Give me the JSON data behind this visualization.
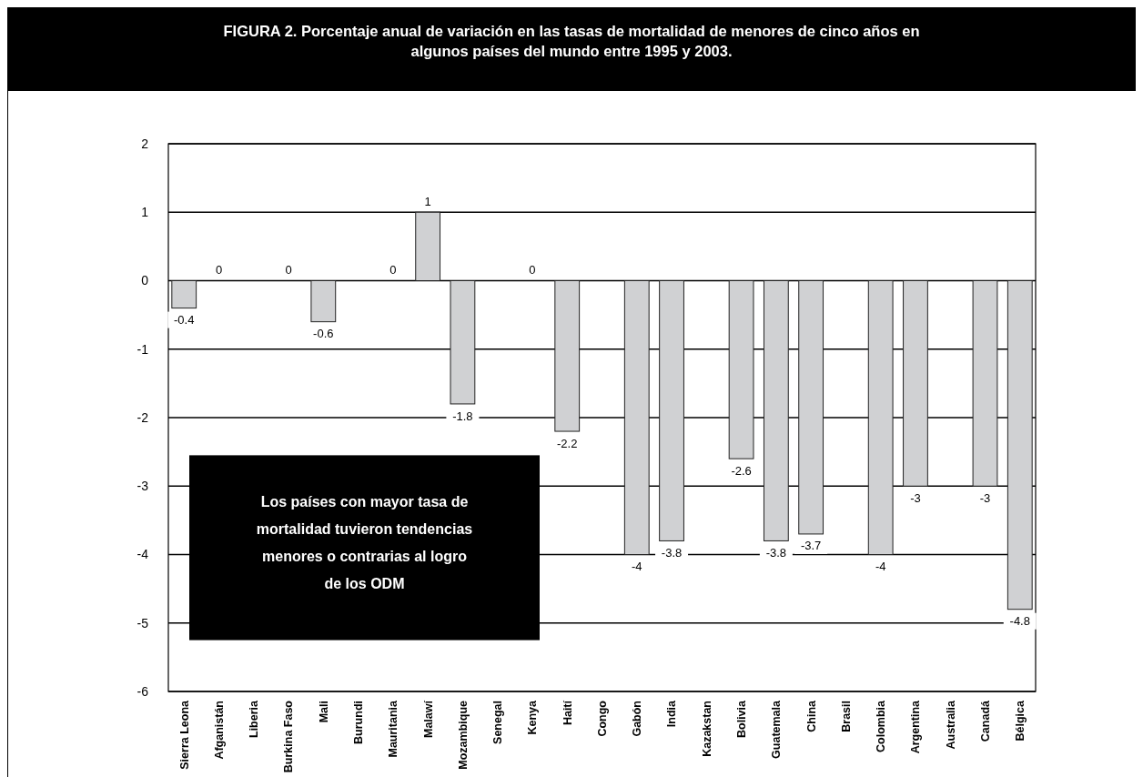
{
  "chart_data": {
    "type": "bar",
    "title": "FIGURA 2. Porcentaje anual de variación en las tasas de mortalidad de menores de cinco años en algunos países del mundo entre 1995 y 2003.",
    "categories": [
      "Sierra Leona",
      "Afganistán",
      "Liberia",
      "Burkina Faso",
      "Mali",
      "Burundi",
      "Mauritania",
      "Malawí",
      "Mozambique",
      "Senegal",
      "Kenya",
      "Haití",
      "Congo",
      "Gabón",
      "India",
      "Kazakstan",
      "Bolivia",
      "Guatemala",
      "China",
      "Brasil",
      "Colombia",
      "Argentina",
      "Australia",
      "Canadá",
      "Bélgica"
    ],
    "values": [
      -0.4,
      0,
      null,
      0,
      -0.6,
      null,
      0,
      1,
      -1.8,
      null,
      0,
      -2.2,
      null,
      -4,
      -3.8,
      null,
      -2.6,
      -3.8,
      -3.7,
      null,
      -4,
      -3,
      null,
      -3,
      -4.8
    ],
    "color": "#d0d1d3",
    "ylim": [
      -6,
      2
    ],
    "yticks": [
      -6,
      -5,
      -4,
      -3,
      -2,
      -1,
      0,
      1,
      2
    ],
    "grid": "y",
    "data_labels": true,
    "annotations": [
      "Los países con mayor tasa de mortalidad tuvieron tendencias menores o contrarias al logro de los ODM"
    ]
  }
}
